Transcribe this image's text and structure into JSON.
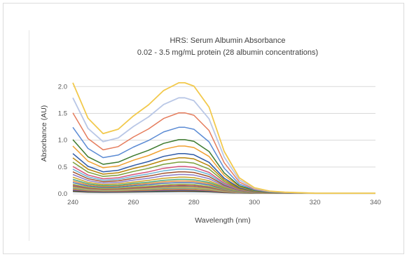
{
  "chart_data": {
    "type": "line",
    "title": "HRS: Serum Albumin Absorbance",
    "subtitle": "0.02 - 3.5 mg/mL protein (28 albumin concentrations)",
    "xlabel": "Wavelength (nm)",
    "ylabel": "Absorbance (AU)",
    "xlim": [
      240,
      340
    ],
    "ylim": [
      0,
      2.2
    ],
    "xticks": [
      "240",
      "260",
      "280",
      "300",
      "320",
      "340"
    ],
    "yticks": [
      "0.0",
      "0.5",
      "1.0",
      "1.5",
      "2.0"
    ],
    "grid": "horizontal",
    "legend": "none",
    "x": [
      240,
      245,
      250,
      255,
      260,
      265,
      270,
      275,
      277,
      280,
      285,
      290,
      295,
      300,
      305,
      310,
      320,
      340
    ],
    "shape": [
      1.0,
      0.68,
      0.54,
      0.58,
      0.7,
      0.8,
      0.93,
      1.0,
      1.0,
      0.97,
      0.78,
      0.38,
      0.14,
      0.05,
      0.02,
      0.01,
      0.0,
      0.0
    ],
    "peak_values_au": [
      2.06,
      1.78,
      1.5,
      1.23,
      1.0,
      0.88,
      0.74,
      0.66,
      0.58,
      0.5,
      0.45,
      0.4,
      0.35,
      0.3,
      0.26,
      0.23,
      0.2,
      0.17,
      0.15,
      0.13,
      0.11,
      0.1,
      0.09,
      0.07,
      0.06,
      0.05,
      0.04,
      0.03
    ],
    "colors": [
      "#f2c94c",
      "#b9c7e6",
      "#e57c5c",
      "#5b8bd4",
      "#3d7a2e",
      "#f0a030",
      "#2e5aa6",
      "#b8860b",
      "#7a9f3a",
      "#d4547a",
      "#6bb3d6",
      "#a0522d",
      "#8e7cc3",
      "#c9a227",
      "#4aa87a",
      "#e88c3c",
      "#4d6fb0",
      "#9cc25a",
      "#c05050",
      "#7f7f7f",
      "#d9b44a",
      "#5c8fbf",
      "#a3c76a",
      "#c46b3a",
      "#6a5acd",
      "#2f6f4f",
      "#8b4513",
      "#3a6a8a"
    ]
  }
}
